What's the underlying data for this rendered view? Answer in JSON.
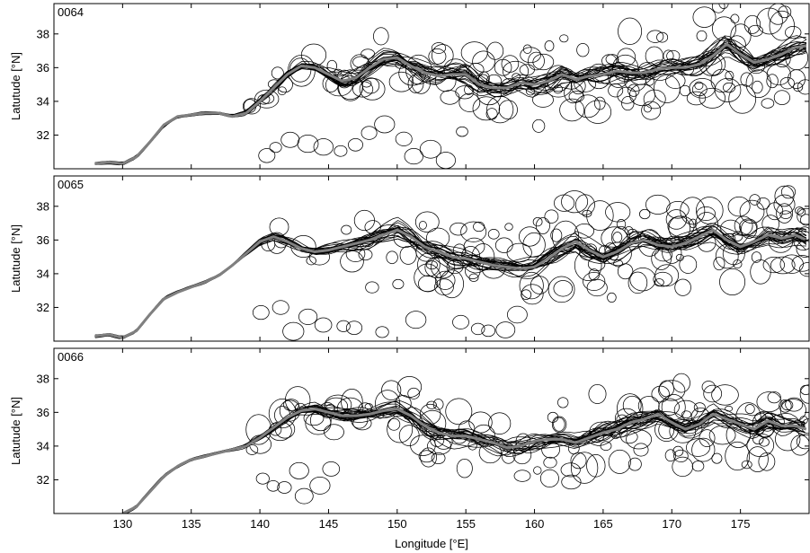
{
  "chart_data": {
    "type": "line",
    "xlabel": "Longitude [°E]",
    "ylabel": "Latutude [°N]",
    "xlim": [
      125,
      180
    ],
    "ylim": [
      30,
      39.8
    ],
    "x_ticks": [
      130,
      135,
      140,
      145,
      150,
      155,
      160,
      165,
      170,
      175
    ],
    "y_ticks": [
      32,
      34,
      36,
      38
    ],
    "grid": false,
    "panels": [
      {
        "panel": "0064",
        "series": [
          {
            "line_color": "#808080",
            "x": [
              128.0,
              129.0,
              130.0,
              131.0,
              132.0,
              133.0,
              134.0,
              135.0,
              136.0,
              137.0,
              138.0,
              139.0,
              140.0,
              141.0,
              142.0,
              143.0,
              144.0,
              145.0,
              146.0,
              147.0,
              148.0,
              149.0,
              150.0,
              151.0,
              152.0,
              153.0,
              154.0,
              155.0,
              156.0,
              157.0,
              158.0,
              159.0,
              160.0,
              161.0,
              162.0,
              163.0,
              164.0,
              165.0,
              166.0,
              167.0,
              168.0,
              169.0,
              170.0,
              171.0,
              172.0,
              173.0,
              174.0,
              175.0,
              176.0,
              177.0,
              178.0,
              179.0,
              179.8
            ],
            "y": [
              30.3,
              30.4,
              30.3,
              30.7,
              31.6,
              32.6,
              33.1,
              33.2,
              33.3,
              33.3,
              33.1,
              33.3,
              34.0,
              34.8,
              35.6,
              36.1,
              36.0,
              35.6,
              35.2,
              35.4,
              36.0,
              36.5,
              36.6,
              36.1,
              35.7,
              35.5,
              35.6,
              35.6,
              35.0,
              34.8,
              34.8,
              35.1,
              35.0,
              35.2,
              35.6,
              35.3,
              35.5,
              35.6,
              35.8,
              35.7,
              35.7,
              35.9,
              36.0,
              36.0,
              36.2,
              36.7,
              37.4,
              36.8,
              36.3,
              36.5,
              36.8,
              37.2,
              37.3
            ]
          }
        ]
      },
      {
        "panel": "0065",
        "series": [
          {
            "line_color": "#808080",
            "x": [
              128.0,
              129.0,
              130.0,
              131.0,
              132.0,
              133.0,
              134.0,
              135.0,
              136.0,
              137.0,
              138.0,
              139.0,
              140.0,
              141.0,
              142.0,
              143.0,
              144.0,
              145.0,
              146.0,
              147.0,
              148.0,
              149.0,
              150.0,
              151.0,
              152.0,
              153.0,
              154.0,
              155.0,
              156.0,
              157.0,
              158.0,
              159.0,
              160.0,
              161.0,
              162.0,
              163.0,
              164.0,
              165.0,
              166.0,
              167.0,
              168.0,
              169.0,
              170.0,
              171.0,
              172.0,
              173.0,
              174.0,
              175.0,
              176.0,
              177.0,
              178.0,
              179.0,
              179.8
            ],
            "y": [
              30.3,
              30.4,
              30.2,
              30.6,
              31.6,
              32.5,
              32.9,
              33.2,
              33.5,
              33.9,
              34.5,
              35.2,
              35.9,
              36.2,
              35.9,
              35.5,
              35.3,
              35.4,
              35.6,
              35.8,
              36.0,
              36.3,
              36.6,
              36.2,
              35.6,
              35.3,
              35.0,
              34.9,
              34.7,
              34.5,
              34.4,
              34.3,
              34.4,
              34.9,
              35.5,
              35.9,
              35.4,
              35.0,
              35.3,
              35.8,
              36.0,
              35.7,
              35.6,
              35.8,
              36.2,
              36.6,
              36.0,
              35.6,
              35.9,
              36.3,
              36.1,
              36.3,
              36.0
            ]
          }
        ]
      },
      {
        "panel": "0066",
        "series": [
          {
            "line_color": "#808080",
            "x": [
              130.0,
              131.0,
              132.0,
              133.0,
              134.0,
              135.0,
              136.0,
              137.0,
              138.0,
              139.0,
              140.0,
              141.0,
              142.0,
              143.0,
              144.0,
              145.0,
              146.0,
              147.0,
              148.0,
              149.0,
              150.0,
              151.0,
              152.0,
              153.0,
              154.0,
              155.0,
              156.0,
              157.0,
              158.0,
              159.0,
              160.0,
              161.0,
              162.0,
              163.0,
              164.0,
              165.0,
              166.0,
              167.0,
              168.0,
              169.0,
              170.0,
              171.0,
              172.0,
              173.0,
              174.0,
              175.0,
              176.0,
              177.0,
              178.0,
              179.0,
              179.8
            ],
            "y": [
              30.0,
              30.4,
              31.3,
              32.2,
              32.8,
              33.2,
              33.4,
              33.6,
              33.8,
              34.0,
              34.5,
              35.1,
              35.7,
              36.1,
              36.2,
              36.0,
              35.8,
              35.8,
              35.9,
              36.1,
              36.2,
              35.8,
              35.2,
              34.8,
              34.6,
              34.6,
              34.4,
              34.2,
              33.9,
              34.0,
              34.3,
              34.4,
              34.4,
              34.2,
              34.5,
              34.8,
              35.0,
              35.4,
              35.6,
              35.9,
              35.4,
              35.0,
              35.3,
              35.9,
              35.6,
              35.3,
              35.0,
              35.5,
              35.2,
              35.2,
              35.0
            ]
          }
        ]
      }
    ]
  }
}
